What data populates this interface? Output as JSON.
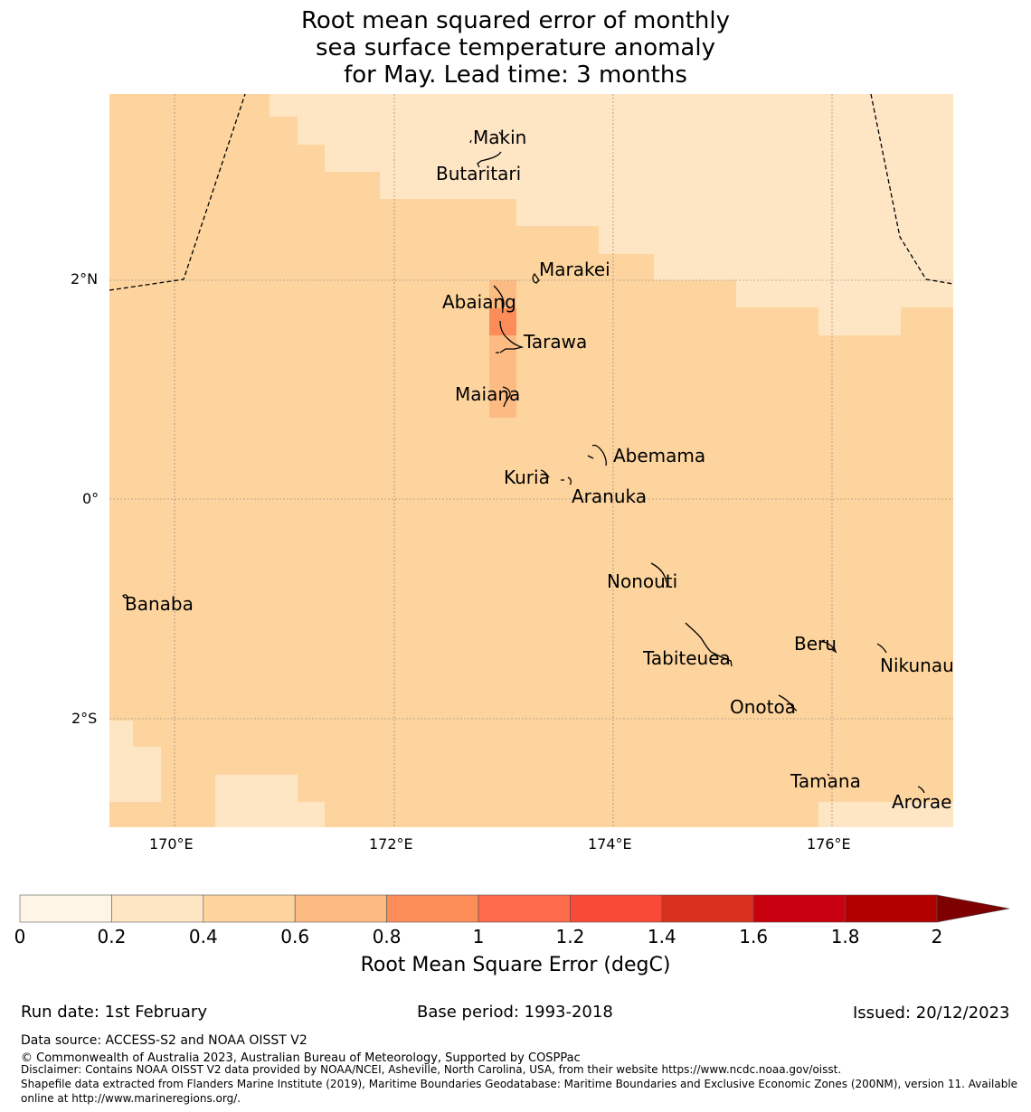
{
  "title": {
    "line1": "Root mean squared error of monthly",
    "line2": "sea surface temperature anomaly",
    "line3": "for May. Lead time: 3 months"
  },
  "map": {
    "lat_ticks": [
      "2°N",
      "0°",
      "2°S"
    ],
    "lon_ticks": [
      "170°E",
      "172°E",
      "174°E",
      "176°E"
    ],
    "islands": [
      {
        "name": "Makin"
      },
      {
        "name": "Butaritari"
      },
      {
        "name": "Marakei"
      },
      {
        "name": "Abaiang"
      },
      {
        "name": "Tarawa"
      },
      {
        "name": "Maiana"
      },
      {
        "name": "Abemama"
      },
      {
        "name": "Kuria"
      },
      {
        "name": "Aranuka"
      },
      {
        "name": "Nonouti"
      },
      {
        "name": "Banaba"
      },
      {
        "name": "Beru"
      },
      {
        "name": "Tabiteuea"
      },
      {
        "name": "Nikunau"
      },
      {
        "name": "Onotoa"
      },
      {
        "name": "Tamana"
      },
      {
        "name": "Arorae"
      }
    ]
  },
  "colorbar": {
    "label": "Root Mean Square Error (degC)",
    "ticks": [
      "0",
      "0.2",
      "0.4",
      "0.6",
      "0.8",
      "1",
      "1.2",
      "1.4",
      "1.6",
      "1.8",
      "2"
    ],
    "colors": [
      "#fff5e6",
      "#fee6c5",
      "#fdd49e",
      "#fdbb84",
      "#fc8d59",
      "#fd6b4a",
      "#f84a36",
      "#d7301f",
      "#c90010",
      "#b00000",
      "#7f0000"
    ]
  },
  "footer": {
    "run_date": "Run date: 1st February",
    "base_period": "Base period: 1993-2018",
    "issued": "Issued: 20/12/2023",
    "data_source": "Data source: ACCESS-S2 and NOAA OISST V2",
    "copyright": "© Commonwealth of Australia 2023, Australian Bureau of Meteorology, Supported by COSPPac",
    "disclaimer": "Disclaimer: Contains NOAA OISST V2 data provided by NOAA/NCEI, Asheville, North Carolina, USA, from their website https://www.ncdc.noaa.gov/oisst.",
    "shapefile_1": "Shapefile data extracted from Flanders Marine Institute (2019), Maritime Boundaries Geodatabase: Maritime Boundaries and Exclusive Economic Zones (200NM), version 11. Available",
    "shapefile_2": "online at http://www.marineregions.org/."
  }
}
